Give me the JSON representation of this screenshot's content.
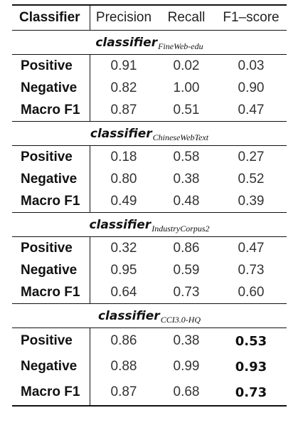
{
  "header": {
    "label": "Classifier",
    "columns": [
      "Precision",
      "Recall",
      "F1–score"
    ]
  },
  "sections": [
    {
      "title_main": "classifier",
      "title_sub": "FineWeb-edu",
      "rows": [
        {
          "label": "Positive",
          "values": [
            "0.91",
            "0.02",
            "0.03"
          ]
        },
        {
          "label": "Negative",
          "values": [
            "0.82",
            "1.00",
            "0.90"
          ]
        },
        {
          "label": "Macro F1",
          "values": [
            "0.87",
            "0.51",
            "0.47"
          ]
        }
      ]
    },
    {
      "title_main": "classifier",
      "title_sub": "ChineseWebText",
      "rows": [
        {
          "label": "Positive",
          "values": [
            "0.18",
            "0.58",
            "0.27"
          ]
        },
        {
          "label": "Negative",
          "values": [
            "0.80",
            "0.38",
            "0.52"
          ]
        },
        {
          "label": "Macro F1",
          "values": [
            "0.49",
            "0.48",
            "0.39"
          ]
        }
      ]
    },
    {
      "title_main": "classifier",
      "title_sub": "IndustryCorpus2",
      "rows": [
        {
          "label": "Positive",
          "values": [
            "0.32",
            "0.86",
            "0.47"
          ]
        },
        {
          "label": "Negative",
          "values": [
            "0.95",
            "0.59",
            "0.73"
          ]
        },
        {
          "label": "Macro F1",
          "values": [
            "0.64",
            "0.73",
            "0.60"
          ]
        }
      ]
    },
    {
      "title_main": "classifier",
      "title_sub": "CCI3.0-HQ",
      "rows": [
        {
          "label": "Positive",
          "values": [
            "0.86",
            "0.38",
            "0.53"
          ]
        },
        {
          "label": "Negative",
          "values": [
            "0.88",
            "0.99",
            "0.93"
          ]
        },
        {
          "label": "Macro F1",
          "values": [
            "0.87",
            "0.68",
            "0.73"
          ]
        }
      ]
    }
  ]
}
